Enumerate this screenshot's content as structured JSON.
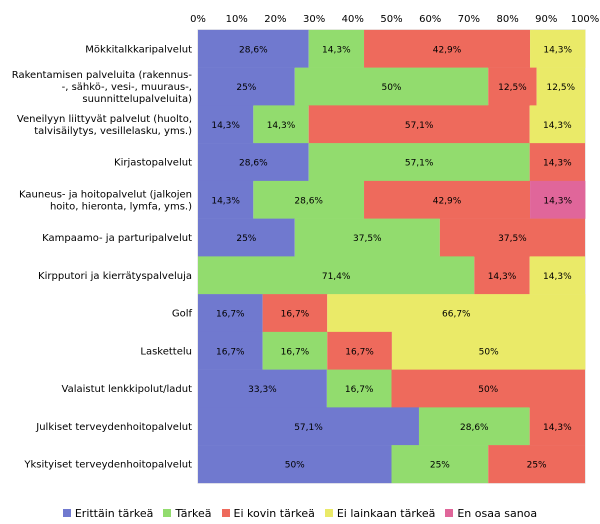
{
  "chart_data": {
    "type": "bar",
    "orientation": "horizontal",
    "stacked": "percent",
    "xlim": [
      0,
      100
    ],
    "xticks": [
      "0%",
      "10%",
      "20%",
      "30%",
      "40%",
      "50%",
      "60%",
      "70%",
      "80%",
      "90%",
      "100%"
    ],
    "grid": true,
    "legend_position": "bottom",
    "categories": [
      [
        "Mökkitalkkaripalvelut"
      ],
      [
        "Rakentamisen palveluita (rakennus-",
        "-, sähkö-, vesi-, muuraus-,",
        "suunnittelupalveluita)"
      ],
      [
        "Veneilyyn liittyvät palvelut (huolto,",
        "talvisäilytys, vesillelasku, yms.)"
      ],
      [
        "Kirjastopalvelut"
      ],
      [
        "Kauneus- ja hoitopalvelut (jalkojen",
        "hoito, hieronta, lymfa, yms.)"
      ],
      [
        "Kampaamo- ja parturipalvelut"
      ],
      [
        "Kirpputori ja kierrätyspalveluja"
      ],
      [
        "Golf"
      ],
      [
        "Laskettelu"
      ],
      [
        "Valaistut lenkkipolut/ladut"
      ],
      [
        "Julkiset terveydenhoitopalvelut"
      ],
      [
        "Yksityiset terveydenhoitopalvelut"
      ]
    ],
    "series": [
      {
        "name": "Erittäin tärkeä",
        "color": "#7079cf",
        "values": [
          28.6,
          25,
          14.3,
          28.6,
          14.3,
          25,
          0,
          16.7,
          16.7,
          33.3,
          57.1,
          50
        ],
        "labels": [
          "28,6%",
          "25%",
          "14,3%",
          "28,6%",
          "14,3%",
          "25%",
          "",
          "16,7%",
          "16,7%",
          "33,3%",
          "57,1%",
          "50%"
        ]
      },
      {
        "name": "Tärkeä",
        "color": "#92dc6e",
        "values": [
          14.3,
          50,
          14.3,
          57.1,
          28.6,
          37.5,
          71.4,
          0,
          16.7,
          16.7,
          28.6,
          25
        ],
        "labels": [
          "14,3%",
          "50%",
          "14,3%",
          "57,1%",
          "28,6%",
          "37,5%",
          "71,4%",
          "",
          "16,7%",
          "16,7%",
          "28,6%",
          "25%"
        ]
      },
      {
        "name": "Ei kovin tärkeä",
        "color": "#ee6a5c",
        "values": [
          42.9,
          12.5,
          57.1,
          14.3,
          42.9,
          37.5,
          14.3,
          16.7,
          16.7,
          50,
          14.3,
          25
        ],
        "labels": [
          "42,9%",
          "12,5%",
          "57,1%",
          "14,3%",
          "42,9%",
          "37,5%",
          "14,3%",
          "16,7%",
          "16,7%",
          "50%",
          "14,3%",
          "25%"
        ]
      },
      {
        "name": "Ei lainkaan tärkeä",
        "color": "#eaea68",
        "values": [
          14.3,
          12.5,
          14.3,
          0,
          0,
          0,
          14.3,
          66.7,
          50,
          0,
          0,
          0
        ],
        "labels": [
          "14,3%",
          "12,5%",
          "14,3%",
          "",
          "",
          "",
          "14,3%",
          "66,7%",
          "50%",
          "",
          "",
          ""
        ]
      },
      {
        "name": "En osaa sanoa",
        "color": "#e0669a",
        "values": [
          0,
          0,
          0,
          0,
          14.3,
          0,
          0,
          0,
          0,
          0,
          0,
          0
        ],
        "labels": [
          "",
          "",
          "",
          "",
          "14,3%",
          "",
          "",
          "",
          "",
          "",
          "",
          ""
        ]
      }
    ]
  }
}
